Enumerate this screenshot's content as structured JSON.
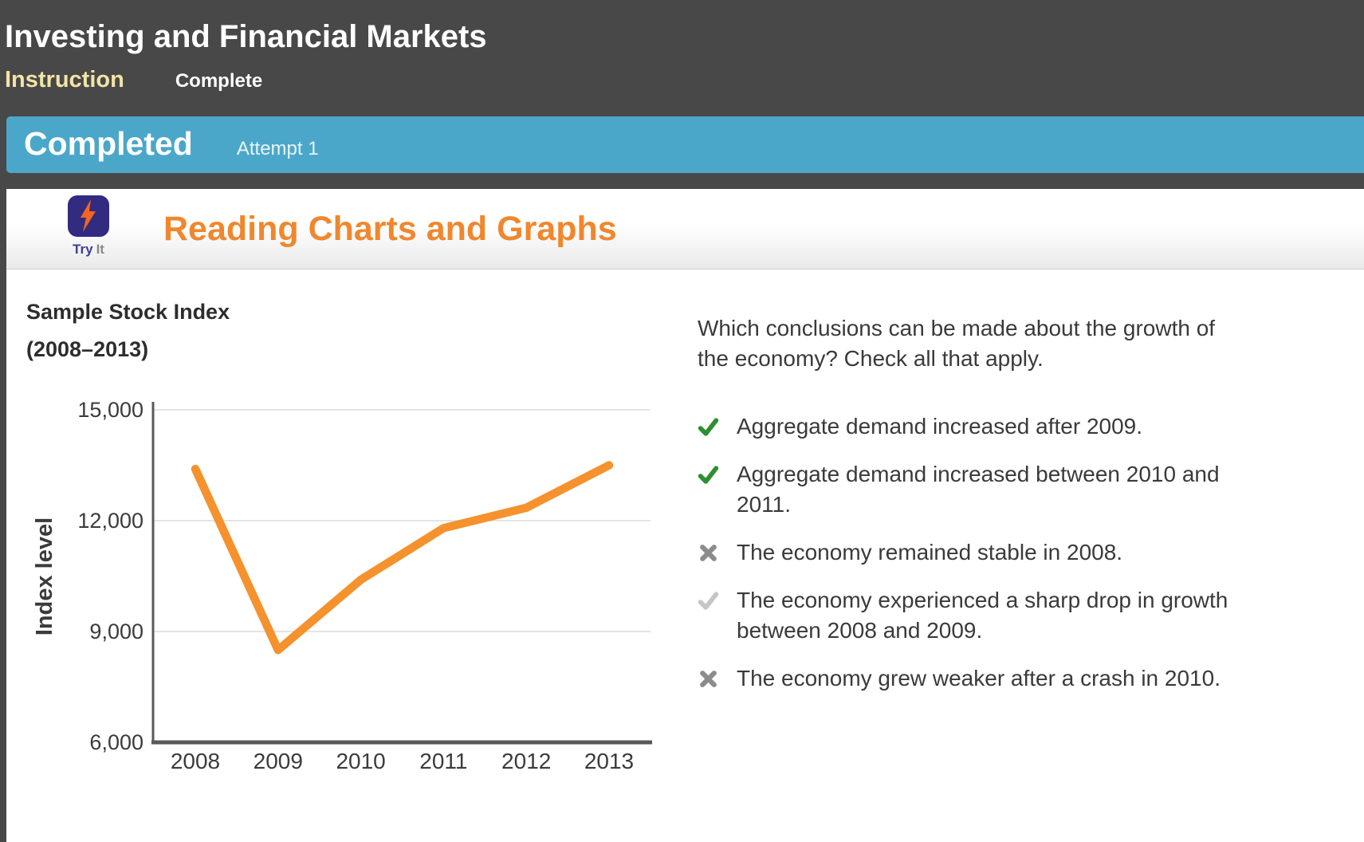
{
  "header": {
    "title": "Investing and Financial Markets",
    "tabs": [
      {
        "label": "Instruction",
        "active": true
      },
      {
        "label": "Complete",
        "active": false
      }
    ]
  },
  "status_bar": {
    "status": "Completed",
    "attempt": "Attempt 1"
  },
  "activity": {
    "icon_name": "lightning-bolt-icon",
    "icon_label_primary": "Try",
    "icon_label_secondary": "It",
    "heading": "Reading Charts and Graphs"
  },
  "question": {
    "prompt": "Which conclusions can be made about the growth of\nthe economy? Check all that apply.",
    "options": [
      {
        "text": "Aggregate demand increased after 2009.",
        "mark": "check",
        "color_key": "check_green",
        "state": "checked-correct"
      },
      {
        "text": "Aggregate demand increased between 2010 and\n2011.",
        "mark": "check",
        "color_key": "check_green",
        "state": "checked-correct"
      },
      {
        "text": "The economy remained stable in 2008.",
        "mark": "x",
        "color_key": "x_gray",
        "state": "unchecked-incorrect"
      },
      {
        "text": "The economy experienced a sharp drop in growth\nbetween 2008 and 2009.",
        "mark": "check",
        "color_key": "check_light",
        "state": "missed-correct"
      },
      {
        "text": "The economy grew weaker after a crash in 2010.",
        "mark": "x",
        "color_key": "x_gray",
        "state": "unchecked-incorrect"
      }
    ]
  },
  "chart_data": {
    "type": "line",
    "title": "Sample Stock Index",
    "subtitle": "(2008–2013)",
    "xlabel": "",
    "ylabel": "Index level",
    "x": [
      2008,
      2009,
      2010,
      2011,
      2012,
      2013
    ],
    "values": [
      13400,
      8500,
      10400,
      11800,
      12350,
      13500
    ],
    "ylim": [
      6000,
      15000
    ],
    "yticks": [
      6000,
      9000,
      12000,
      15000
    ],
    "ytick_labels": [
      "6,000",
      "9,000",
      "12,000",
      "15,000"
    ],
    "grid": "horizontal gridlines at yticks",
    "legend": "none",
    "line_color": "#F5922D"
  },
  "colors": {
    "header_bg": "#484848",
    "status_bg": "#4BA7CA",
    "tab_active": "#F2E3A7",
    "heading_orange": "#F0872D",
    "text_dark": "#3A3A3A",
    "check_green": "#2E8F2E",
    "x_gray": "#8C8C8C",
    "check_light": "#C5C5C5",
    "axis_gray": "#58595B",
    "grid_gray": "#DCDCDC",
    "tryit_bg": "#322B80",
    "bolt_orange": "#F26522"
  }
}
